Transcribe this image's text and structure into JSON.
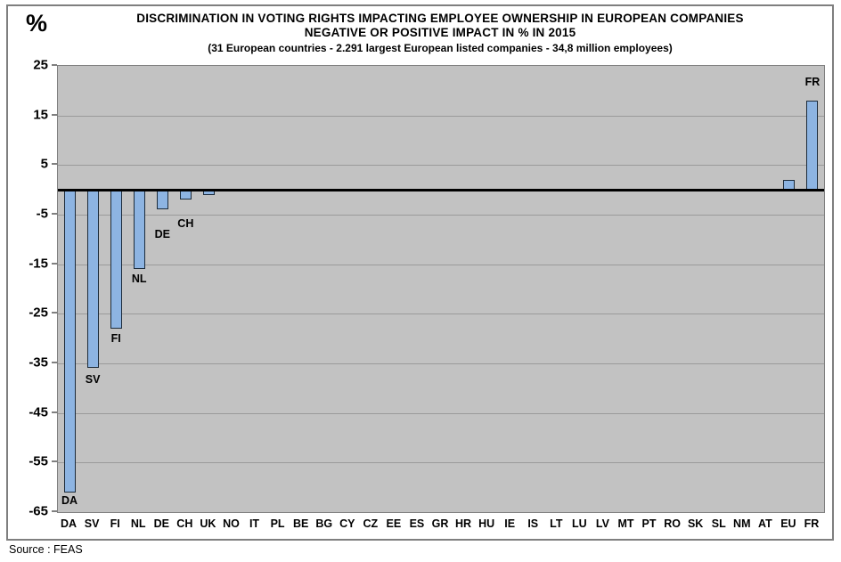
{
  "chart_data": {
    "type": "bar",
    "title_line1": "DISCRIMINATION IN VOTING RIGHTS IMPACTING EMPLOYEE OWNERSHIP IN EUROPEAN COMPANIES",
    "title_line2": "NEGATIVE OR POSITIVE IMPACT IN % IN 2015",
    "subtitle": "(31  European countries - 2.291 largest European listed companies - 34,8 million employees)",
    "y_axis_unit": "%",
    "ylim": [
      -65,
      25
    ],
    "y_ticks": [
      25,
      15,
      5,
      -5,
      -15,
      -25,
      -35,
      -45,
      -55,
      -65
    ],
    "grid": "horizontal",
    "legend": "none",
    "categories": [
      "DA",
      "SV",
      "FI",
      "NL",
      "DE",
      "CH",
      "UK",
      "NO",
      "IT",
      "PL",
      "BE",
      "BG",
      "CY",
      "CZ",
      "EE",
      "ES",
      "GR",
      "HR",
      "HU",
      "IE",
      "IS",
      "LT",
      "LU",
      "LV",
      "MT",
      "PT",
      "RO",
      "SK",
      "SL",
      "NM",
      "AT",
      "EU",
      "FR"
    ],
    "values": [
      -61,
      -36,
      -28,
      -16,
      -4,
      -2,
      -1,
      0,
      0,
      0,
      0,
      0,
      0,
      0,
      0,
      0,
      0,
      0,
      0,
      0,
      0,
      0,
      0,
      0,
      0,
      0,
      0,
      0,
      0,
      0,
      0,
      2,
      18
    ],
    "bar_labels": [
      {
        "index": 0,
        "text": "DA",
        "dy": 2
      },
      {
        "index": 1,
        "text": "SV",
        "dy": 5
      },
      {
        "index": 2,
        "text": "FI",
        "dy": 4
      },
      {
        "index": 3,
        "text": "NL",
        "dy": 4
      },
      {
        "index": 4,
        "text": "DE",
        "dy": 21
      },
      {
        "index": 5,
        "text": "CH",
        "dy": 20
      },
      {
        "index": 32,
        "text": "FR",
        "dy": -28
      }
    ],
    "source": "Source : FEAS",
    "colors": {
      "bar_fill": "#8DB4E2",
      "bar_border": "#1C2B3A",
      "plot_background": "#C2C2C2",
      "gridline": "#9A9A9A",
      "axis_line": "#7F7F7F",
      "zero_line": "#000000",
      "figure_border": "#7F7F7F",
      "text": "#000000"
    }
  }
}
